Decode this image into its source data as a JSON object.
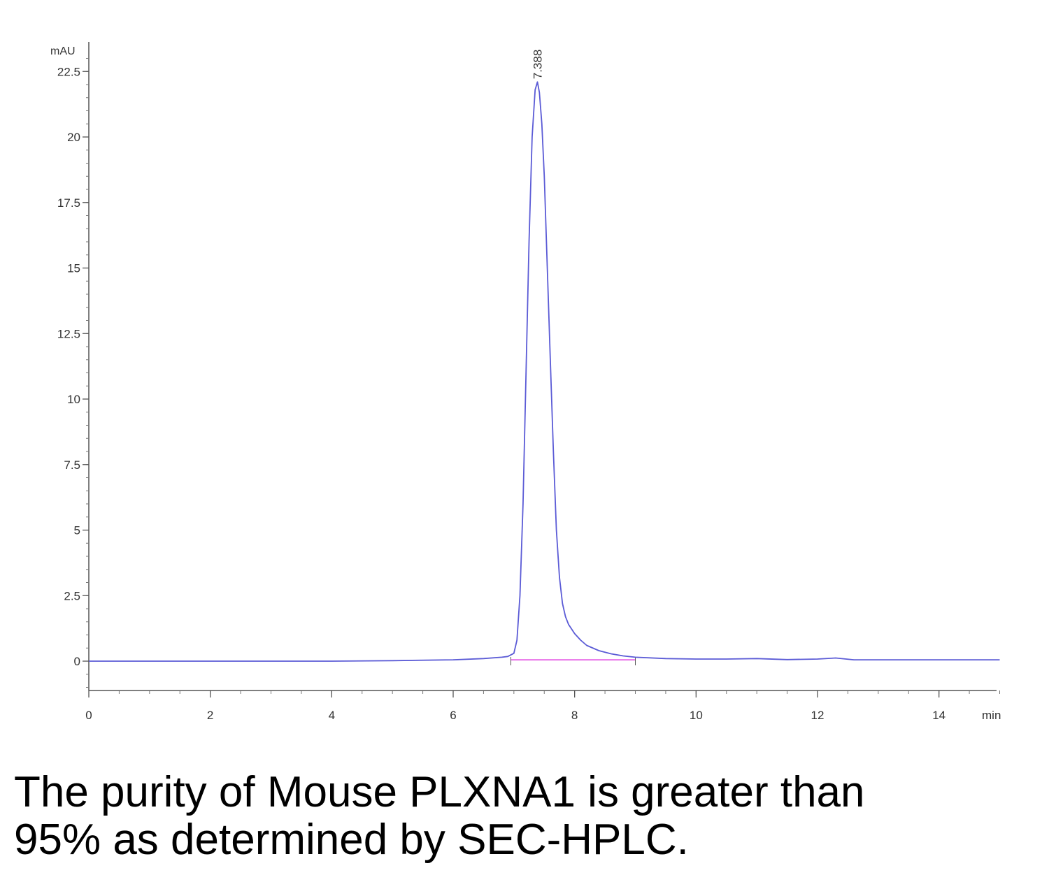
{
  "chart_data": {
    "type": "line",
    "title": "",
    "xlabel": "min",
    "ylabel": "mAU",
    "xlim": [
      0,
      15
    ],
    "ylim": [
      -1.1,
      23.5
    ],
    "x_ticks": [
      0,
      2,
      4,
      6,
      8,
      10,
      12,
      14
    ],
    "x_tick_labels": [
      "0",
      "2",
      "4",
      "6",
      "8",
      "10",
      "12",
      "14"
    ],
    "y_ticks": [
      0,
      2.5,
      5,
      7.5,
      10,
      12.5,
      15,
      17.5,
      20,
      22.5
    ],
    "y_tick_labels": [
      "0",
      "2.5",
      "5",
      "7.5",
      "10",
      "12.5",
      "15",
      "17.5",
      "20",
      "22.5"
    ],
    "grid": false,
    "series": [
      {
        "color": "#5b5bd6",
        "x": [
          0,
          1,
          2,
          3,
          4,
          5,
          6,
          6.5,
          6.8,
          6.9,
          7.0,
          7.05,
          7.1,
          7.15,
          7.2,
          7.25,
          7.3,
          7.35,
          7.388,
          7.42,
          7.46,
          7.5,
          7.55,
          7.6,
          7.65,
          7.7,
          7.75,
          7.8,
          7.85,
          7.9,
          8.0,
          8.1,
          8.2,
          8.4,
          8.6,
          8.8,
          9.0,
          9.5,
          10,
          10.5,
          11,
          11.5,
          12,
          12.3,
          12.6,
          13,
          14,
          15
        ],
        "y": [
          0,
          0,
          0,
          0,
          0,
          0.02,
          0.05,
          0.1,
          0.15,
          0.18,
          0.3,
          0.8,
          2.5,
          6.0,
          11.0,
          16.0,
          20.0,
          21.8,
          22.1,
          21.7,
          20.5,
          18.5,
          15.0,
          11.5,
          8.0,
          5.0,
          3.2,
          2.2,
          1.7,
          1.4,
          1.05,
          0.8,
          0.6,
          0.4,
          0.28,
          0.2,
          0.15,
          0.1,
          0.08,
          0.08,
          0.1,
          0.06,
          0.08,
          0.12,
          0.05,
          0.05,
          0.05,
          0.05
        ]
      }
    ],
    "baseline": {
      "color": "#e040e0",
      "x": [
        6.95,
        9.0
      ],
      "y": [
        0.05,
        0.05
      ]
    },
    "annotations": [
      {
        "text": "7.388",
        "x": 7.388,
        "y": 22.1
      }
    ]
  },
  "caption": {
    "line1": "The purity of Mouse PLXNA1 is greater than",
    "line2": "95% as determined by SEC-HPLC."
  }
}
